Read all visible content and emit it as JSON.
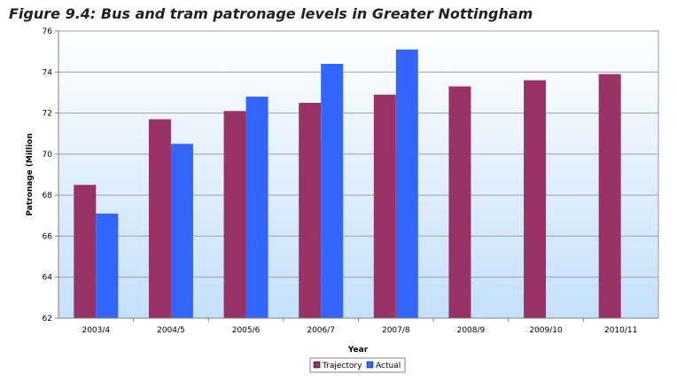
{
  "chart_data": {
    "type": "bar",
    "title": "Figure 9.4: Bus and tram patronage levels in Greater Nottingham",
    "xlabel": "Year",
    "ylabel": "Patronage (Million",
    "ylim": [
      62,
      76
    ],
    "yticks": [
      62,
      64,
      66,
      68,
      70,
      72,
      74,
      76
    ],
    "categories": [
      "2003/4",
      "2004/5",
      "2005/6",
      "2006/7",
      "2007/8",
      "2008/9",
      "2009/10",
      "2010/11"
    ],
    "series": [
      {
        "name": "Trajectory",
        "color": "#993366",
        "values": [
          68.5,
          71.7,
          72.1,
          72.5,
          72.9,
          73.3,
          73.6,
          73.9
        ]
      },
      {
        "name": "Actual",
        "color": "#3366ff",
        "values": [
          67.1,
          70.5,
          72.8,
          74.4,
          75.1,
          null,
          null,
          null
        ]
      }
    ],
    "grid": true,
    "legend": "bottom-center"
  }
}
